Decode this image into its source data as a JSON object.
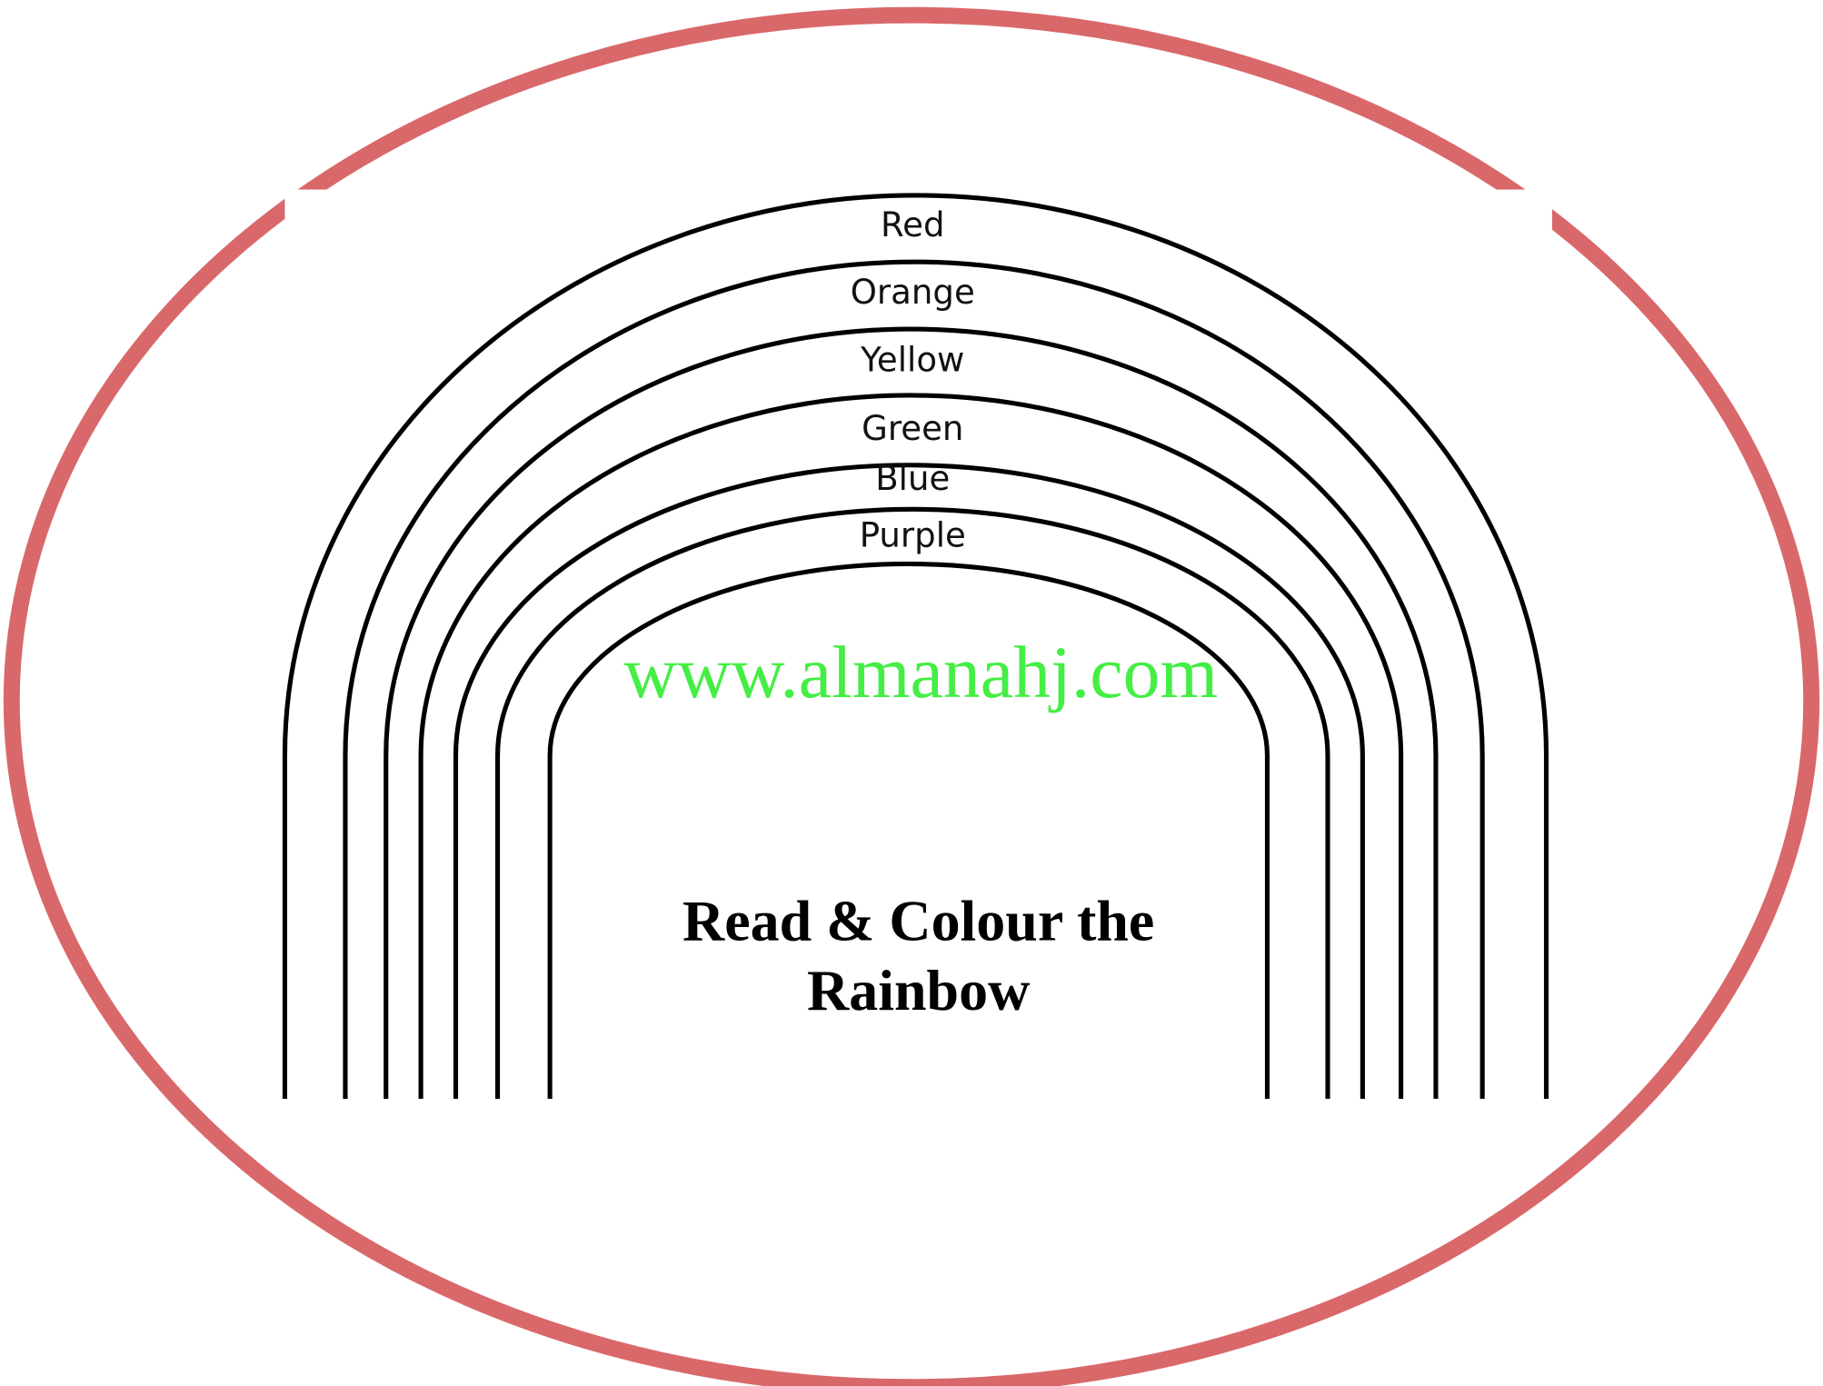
{
  "worksheet": {
    "bands": [
      "Red",
      "Orange",
      "Yellow",
      "Green",
      "Blue",
      "Purple"
    ],
    "title": [
      "Read & Colour the",
      "Rainbow"
    ],
    "watermark": "www.almanahj.com"
  }
}
